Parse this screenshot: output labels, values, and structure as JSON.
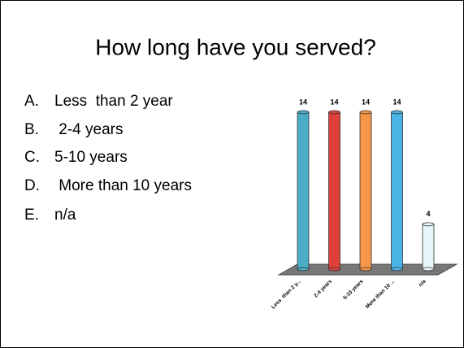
{
  "slide": {
    "title": "How long have you served?",
    "items": [
      {
        "letter": "A.",
        "text": "Less  than 2 year"
      },
      {
        "letter": "B.",
        "text": " 2-4 years"
      },
      {
        "letter": "C.",
        "text": "5-10 years"
      },
      {
        "letter": "D.",
        "text": " More than 10 years"
      },
      {
        "letter": "E.",
        "text": "n/a"
      }
    ]
  },
  "chart_data": {
    "type": "bar",
    "categories": [
      "Less  than 2 y...",
      "2-4 years",
      "5-10 years",
      "More than 10 ...",
      "n/a"
    ],
    "values": [
      14,
      14,
      14,
      14,
      4
    ],
    "colors": [
      "#4bacc6",
      "#e0403a",
      "#f79646",
      "#4bb4e6",
      "#e6f5fa"
    ]
  }
}
